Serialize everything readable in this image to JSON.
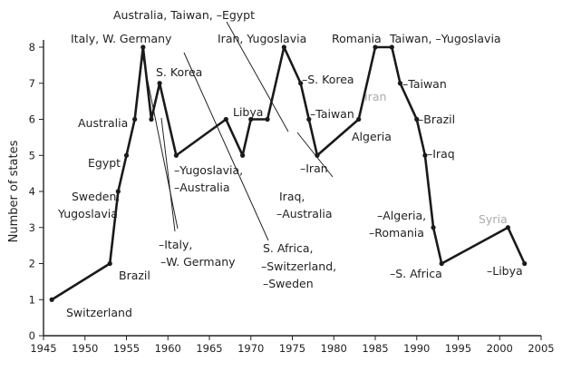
{
  "chart_data": {
    "type": "line",
    "ylabel": "Number of states",
    "xlabel": "",
    "xlim": [
      1945,
      2005
    ],
    "ylim": [
      0,
      8
    ],
    "xticks": [
      "1945",
      "1950",
      "1955",
      "1960",
      "1965",
      "1970",
      "1975",
      "1980",
      "1985",
      "1990",
      "1995",
      "2000",
      "2005"
    ],
    "yticks": [
      "0",
      "1",
      "2",
      "3",
      "4",
      "5",
      "6",
      "7",
      "8"
    ],
    "x": [
      1946,
      1953,
      1954,
      1955,
      1956,
      1957,
      1958,
      1959,
      1961,
      1967,
      1969,
      1970,
      1972,
      1974,
      1976,
      1977,
      1978,
      1983,
      1985,
      1987,
      1988,
      1990,
      1991,
      1992,
      1993,
      2001,
      2003
    ],
    "y": [
      1,
      2,
      4,
      5,
      6,
      8,
      6,
      7,
      5,
      6,
      5,
      6,
      6,
      8,
      7,
      6,
      5,
      6,
      8,
      8,
      7,
      6,
      5,
      3,
      2,
      3,
      2
    ],
    "annotations": [
      {
        "text": "Switzerland",
        "gray": false
      },
      {
        "text": "Brazil",
        "gray": false
      },
      {
        "text": "Sweden,",
        "gray": false
      },
      {
        "text": "Yugoslavia",
        "gray": false
      },
      {
        "text": "Egypt",
        "gray": false
      },
      {
        "text": "Australia",
        "gray": false
      },
      {
        "text": "Italy, W. Germany",
        "gray": false
      },
      {
        "text": "S. Korea",
        "gray": false
      },
      {
        "text": "–Italy,",
        "gray": false
      },
      {
        "text": "–W. Germany",
        "gray": false
      },
      {
        "text": "Australia, Taiwan, –Egypt",
        "gray": false
      },
      {
        "text": "–Yugoslavia,",
        "gray": false
      },
      {
        "text": "–Australia",
        "gray": false
      },
      {
        "text": "Libya",
        "gray": false
      },
      {
        "text": "Iran, Yugoslavia",
        "gray": false
      },
      {
        "text": "S. Africa,",
        "gray": false
      },
      {
        "text": "–Switzerland,",
        "gray": false
      },
      {
        "text": "–Sweden",
        "gray": false
      },
      {
        "text": "Iraq,",
        "gray": false
      },
      {
        "text": "–Australia",
        "gray": false
      },
      {
        "text": "–S. Korea",
        "gray": false
      },
      {
        "text": "–Taiwan",
        "gray": false
      },
      {
        "text": "–Iran",
        "gray": false
      },
      {
        "text": "Romania",
        "gray": false
      },
      {
        "text": "Iran",
        "gray": true
      },
      {
        "text": "Algeria",
        "gray": false
      },
      {
        "text": "Taiwan, –Yugoslavia",
        "gray": false
      },
      {
        "text": "–Taiwan",
        "gray": false
      },
      {
        "text": "–Brazil",
        "gray": false
      },
      {
        "text": "–Iraq",
        "gray": false
      },
      {
        "text": "–Algeria,",
        "gray": false
      },
      {
        "text": "–Romania",
        "gray": false
      },
      {
        "text": "–S. Africa",
        "gray": false
      },
      {
        "text": "Syria",
        "gray": true
      },
      {
        "text": "–Libya",
        "gray": false
      }
    ],
    "grid": false,
    "legend": "none"
  }
}
